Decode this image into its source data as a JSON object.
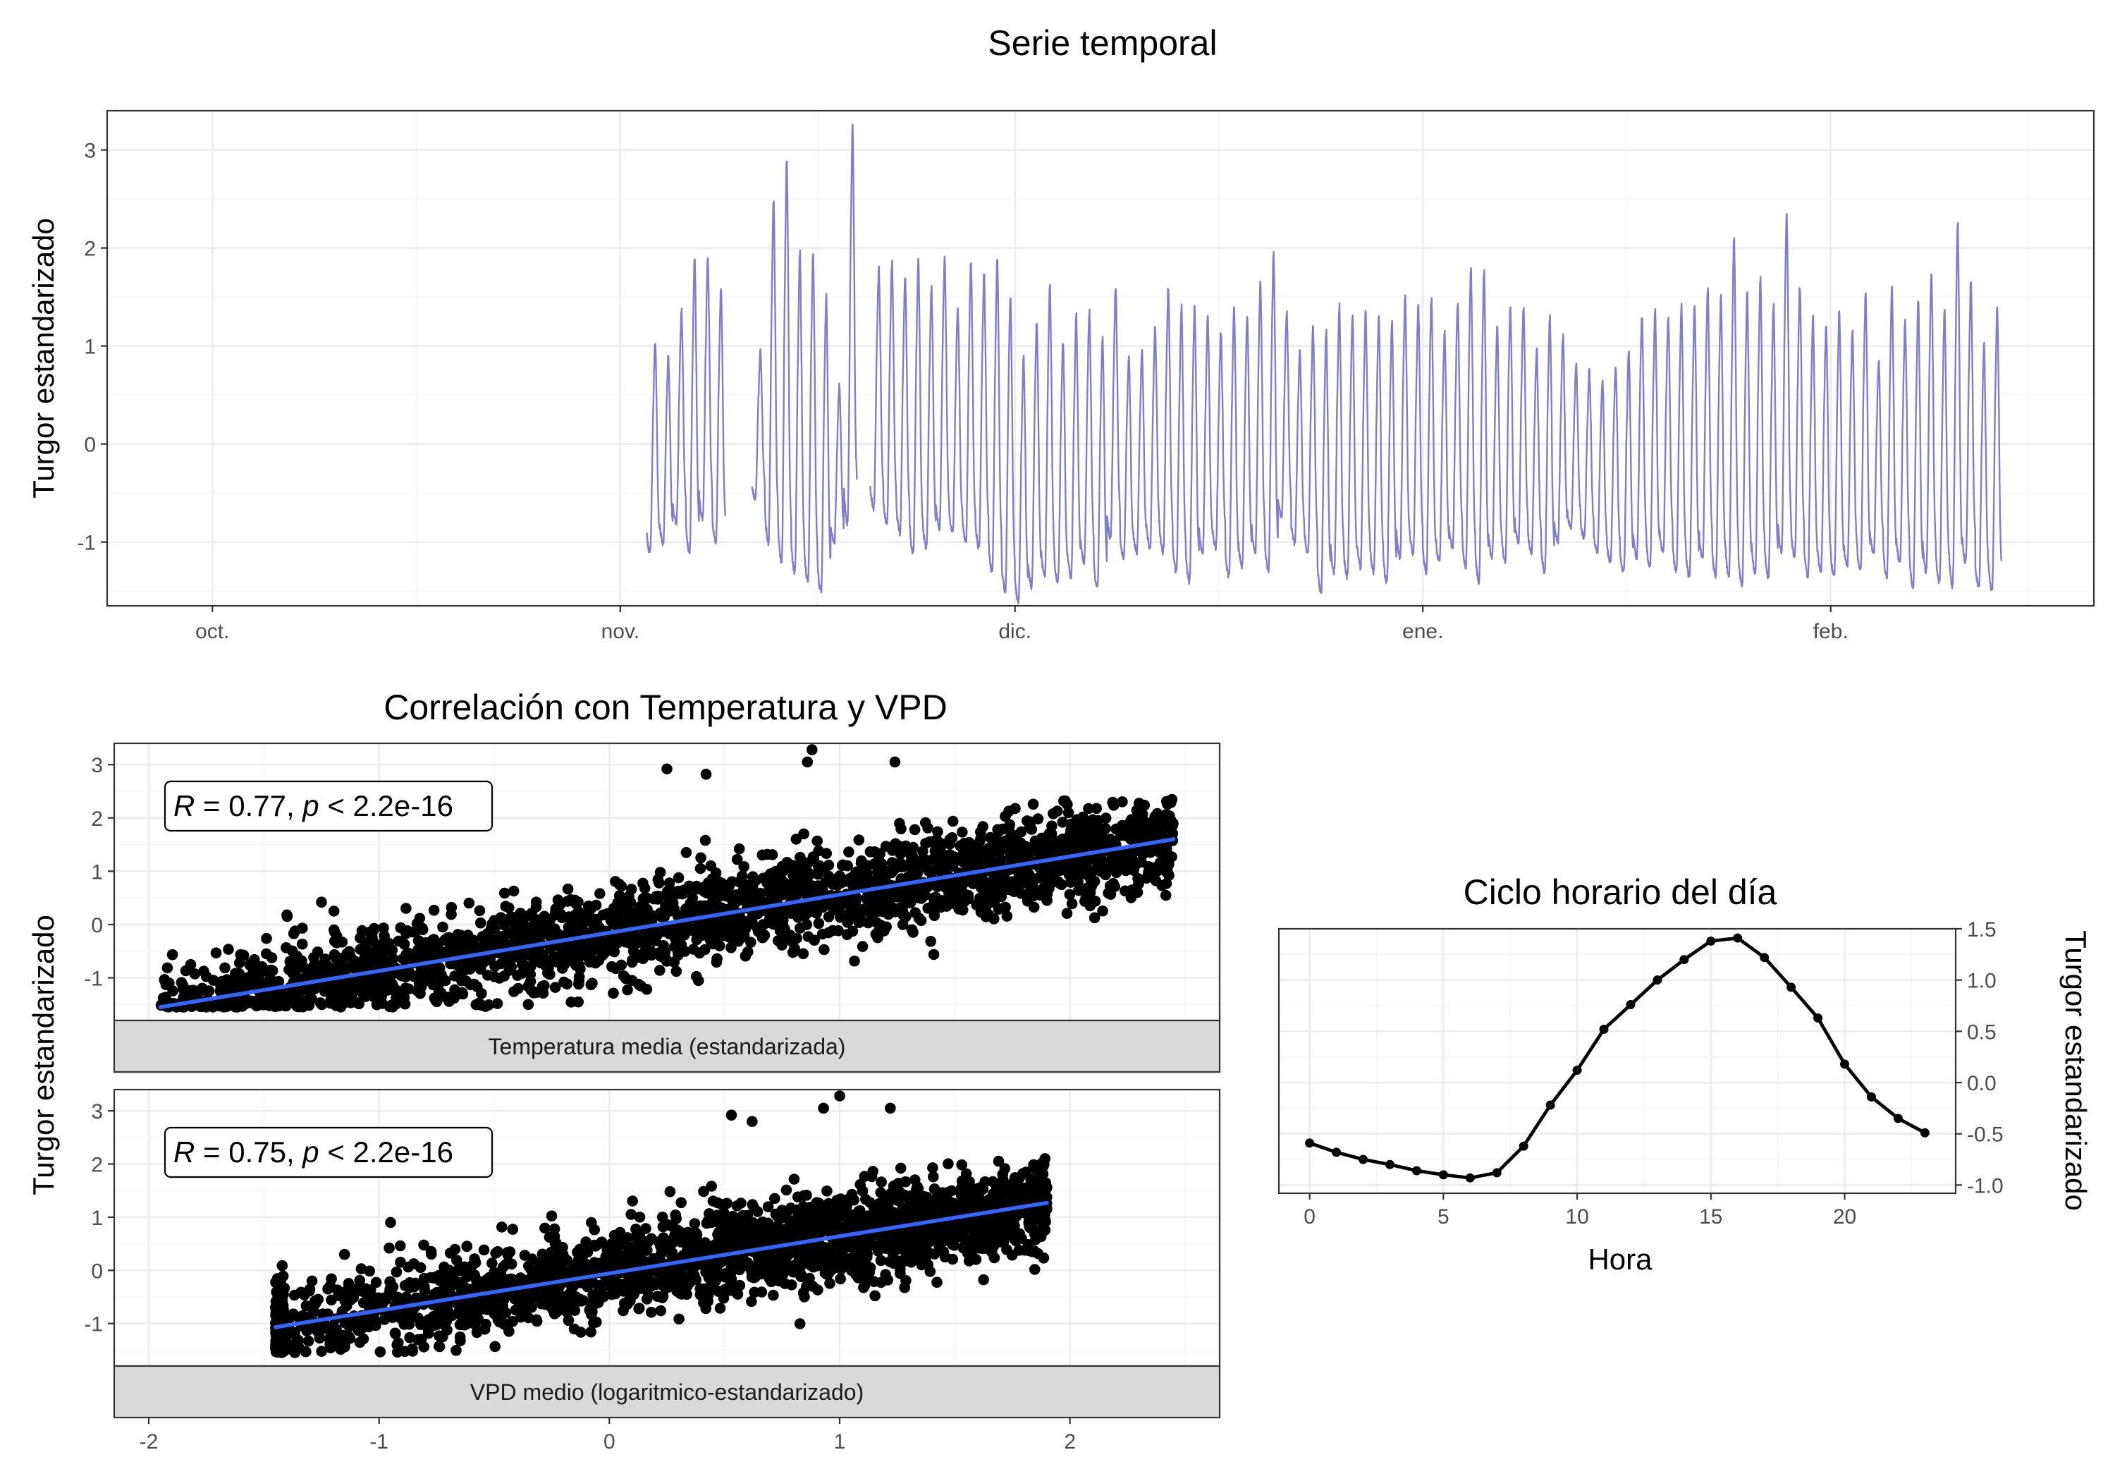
{
  "colors": {
    "series_line": "#7f7fc8",
    "points": "#000000",
    "regression": "#3366ff",
    "hourly_line": "#000000",
    "strip_background": "#d9d9d9"
  },
  "chart_data": [
    {
      "id": "timeseries",
      "type": "line",
      "title": "Serie temporal",
      "xlabel": "",
      "ylabel": "Turgor estandarizado",
      "x_tick_labels": [
        "oct.",
        "nov.",
        "dic.",
        "ene.",
        "feb."
      ],
      "x_tick_dates": [
        "2023-10-01",
        "2023-11-01",
        "2023-12-01",
        "2024-01-01",
        "2024-02-01"
      ],
      "x_range": [
        "2023-09-23",
        "2024-02-21"
      ],
      "y_ticks": [
        -1,
        0,
        1,
        2,
        3
      ],
      "y_tick_labels": [
        "-1",
        "0",
        "1",
        "2",
        "3"
      ],
      "ylim": [
        -1.65,
        3.4
      ],
      "grid": true,
      "data_range": [
        "2023-11-03",
        "2024-02-13"
      ],
      "daily_peaks": [
        1.05,
        0.9,
        1.35,
        1.9,
        1.9,
        1.6,
        null,
        null,
        0.95,
        2.5,
        2.9,
        1.95,
        1.95,
        1.5,
        0.6,
        3.25,
        null,
        1.8,
        1.85,
        1.7,
        1.9,
        1.6,
        1.9,
        1.4,
        1.85,
        1.75,
        1.9,
        1.5,
        0.9,
        1.25,
        1.6,
        1.05,
        1.3,
        1.35,
        1.1,
        1.6,
        0.9,
        0.95,
        1.2,
        1.6,
        1.4,
        1.4,
        1.3,
        1.15,
        1.4,
        1.3,
        1.65,
        1.95,
        1.35,
        0.95,
        1.2,
        1.15,
        1.4,
        1.3,
        1.35,
        1.3,
        1.25,
        1.5,
        1.4,
        1.5,
        1.15,
        1.45,
        1.8,
        1.75,
        1.2,
        1.4,
        1.4,
        0.95,
        1.3,
        1.1,
        0.8,
        0.75,
        0.65,
        0.8,
        0.95,
        1.3,
        1.35,
        1.3,
        1.4,
        1.4,
        1.6,
        1.5,
        2.1,
        1.55,
        1.7,
        1.4,
        2.35,
        1.6,
        1.3,
        1.2,
        1.35,
        1.15,
        1.55,
        0.85,
        1.6,
        1.25,
        1.45,
        1.75,
        1.35,
        2.25,
        1.65,
        1.0,
        1.4
      ],
      "daily_troughs": [
        -1.1,
        -1.0,
        -0.8,
        -1.1,
        -0.75,
        -1.0,
        null,
        null,
        -0.55,
        -1.0,
        -1.2,
        -1.3,
        -1.4,
        -1.5,
        -1.0,
        -0.8,
        null,
        -0.65,
        -0.8,
        -0.9,
        -1.1,
        -1.05,
        -0.85,
        -0.9,
        -1.0,
        -1.05,
        -1.3,
        -1.5,
        -1.6,
        -1.45,
        -1.35,
        -1.4,
        -1.35,
        -1.2,
        -1.45,
        -0.95,
        -1.15,
        -1.1,
        -1.05,
        -1.1,
        -1.3,
        -1.4,
        -1.1,
        -1.05,
        -1.35,
        -1.25,
        -1.1,
        -1.3,
        -0.75,
        -1.0,
        -1.1,
        -1.5,
        -1.3,
        -1.35,
        -1.25,
        -1.3,
        -1.4,
        -1.15,
        -1.1,
        -1.3,
        -1.2,
        -1.05,
        -1.25,
        -1.4,
        -1.15,
        -1.2,
        -1.0,
        -1.1,
        -1.3,
        -1.0,
        -0.85,
        -0.95,
        -1.1,
        -1.2,
        -1.3,
        -1.15,
        -1.25,
        -1.1,
        -1.3,
        -1.35,
        -1.15,
        -1.35,
        -1.35,
        -1.45,
        -1.3,
        -1.35,
        -1.1,
        -1.15,
        -1.35,
        -1.3,
        -1.35,
        -1.25,
        -1.3,
        -1.1,
        -1.35,
        -1.2,
        -1.45,
        -1.3,
        -1.4,
        -1.45,
        -1.2,
        -1.45,
        -1.5
      ]
    },
    {
      "id": "correlation",
      "type": "scatter",
      "title": "Correlación con Temperatura y VPD",
      "ylabel": "Turgor estandarizado",
      "x_ticks": [
        -2,
        -1,
        0,
        1,
        2
      ],
      "x_tick_labels": [
        "-2",
        "-1",
        "0",
        "1",
        "2"
      ],
      "xlim": [
        -2.15,
        2.65
      ],
      "y_ticks": [
        -1,
        0,
        1,
        2,
        3
      ],
      "y_tick_labels": [
        "-1",
        "0",
        "1",
        "2",
        "3"
      ],
      "ylim": [
        -1.8,
        3.4
      ],
      "grid": true,
      "panels": [
        {
          "id": "temperature",
          "strip_label": "Temperatura media (estandarizada)",
          "annotation": {
            "r_symbol": "R",
            "r_text": " = 0.77, ",
            "p_symbol": "p",
            "p_text": " < 2.2e-16"
          },
          "point_count": 2400,
          "x_range": [
            -1.95,
            2.45
          ],
          "regression": {
            "x": [
              -1.95,
              2.45
            ],
            "y": [
              -1.55,
              1.6
            ]
          },
          "outliers": [
            [
              0.88,
              3.28
            ],
            [
              0.86,
              3.05
            ],
            [
              1.24,
              3.05
            ],
            [
              0.25,
              2.92
            ],
            [
              0.42,
              2.82
            ],
            [
              -1.25,
              0.42
            ],
            [
              -1.4,
              0.18
            ]
          ]
        },
        {
          "id": "vpd",
          "strip_label": "VPD medio (logaritmico-estandarizado)",
          "annotation": {
            "r_symbol": "R",
            "r_text": " = 0.75, ",
            "p_symbol": "p",
            "p_text": " < 2.2e-16"
          },
          "point_count": 2400,
          "x_range": [
            -1.45,
            1.9
          ],
          "regression": {
            "x": [
              -1.45,
              1.9
            ],
            "y": [
              -1.07,
              1.27
            ]
          },
          "outliers": [
            [
              1.0,
              3.28
            ],
            [
              0.93,
              3.05
            ],
            [
              1.22,
              3.05
            ],
            [
              0.53,
              2.92
            ],
            [
              0.62,
              2.8
            ],
            [
              -0.95,
              0.9
            ],
            [
              -1.15,
              0.3
            ]
          ]
        }
      ]
    },
    {
      "id": "hourly",
      "type": "line",
      "title": "Ciclo horario del día",
      "xlabel": "Hora",
      "ylabel": "Turgor estandarizado",
      "y_axis_side": "right",
      "x_ticks": [
        0,
        5,
        10,
        15,
        20
      ],
      "x_tick_labels": [
        "0",
        "5",
        "10",
        "15",
        "20"
      ],
      "xlim": [
        -1.15,
        24.15
      ],
      "y_ticks": [
        -1.0,
        -0.5,
        0.0,
        0.5,
        1.0,
        1.5
      ],
      "y_tick_labels": [
        "-1.0",
        "-0.5",
        "0.0",
        "0.5",
        "1.0",
        "1.5"
      ],
      "ylim": [
        -1.08,
        1.5
      ],
      "grid": true,
      "x": [
        0,
        1,
        2,
        3,
        4,
        5,
        6,
        7,
        8,
        9,
        10,
        11,
        12,
        13,
        14,
        15,
        16,
        17,
        18,
        19,
        20,
        21,
        22,
        23
      ],
      "y": [
        -0.59,
        -0.68,
        -0.75,
        -0.8,
        -0.86,
        -0.9,
        -0.93,
        -0.88,
        -0.62,
        -0.22,
        0.12,
        0.52,
        0.76,
        1.0,
        1.2,
        1.38,
        1.41,
        1.22,
        0.93,
        0.63,
        0.18,
        -0.14,
        -0.35,
        -0.49
      ]
    }
  ]
}
